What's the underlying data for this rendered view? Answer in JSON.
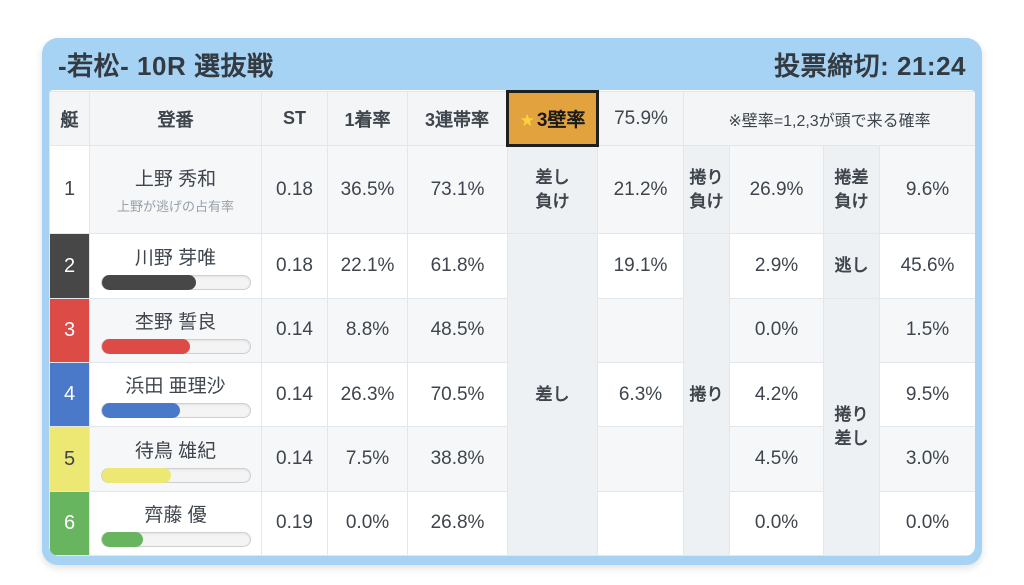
{
  "card": {
    "title": "-若松- 10R 選抜戦",
    "deadline": "投票締切: 21:24",
    "frame_color": "#a6d2f3"
  },
  "table": {
    "header": {
      "boat": "艇",
      "entry": "登番",
      "st": "ST",
      "win_rate": "1着率",
      "top3_rate": "3連帯率",
      "wall_star": "★",
      "wall_label": "3壁率",
      "wall_value": "75.9%",
      "wall_badge_bg": "#e2a33f",
      "note": "※壁率=1,2,3が頭で来る確率"
    },
    "merged_labels": {
      "sashi": "差し",
      "makuri": "捲り",
      "makuri_sashi": "捲り\n差し"
    },
    "rows": [
      {
        "boat": "1",
        "boat_bg": "#ffffff",
        "boat_fg": "#3f454d",
        "name": "上野 秀和",
        "subtext": "上野が逃げの占有率",
        "st": "0.18",
        "win_rate": "36.5%",
        "top3_rate": "73.1%",
        "label_a": "差し\n負け",
        "pct_a": "21.2%",
        "label_b": "捲り\n負け",
        "pct_b": "26.9%",
        "label_c": "捲差\n負け",
        "pct_c": "9.6%"
      },
      {
        "boat": "2",
        "boat_bg": "#474747",
        "boat_fg": "#ffffff",
        "name": "川野 芽唯",
        "bar_pct": 64,
        "st": "0.18",
        "win_rate": "22.1%",
        "top3_rate": "61.8%",
        "pct_a": "19.1%",
        "pct_b": "2.9%",
        "label_c": "逃し",
        "pct_c": "45.6%"
      },
      {
        "boat": "3",
        "boat_bg": "#dc4b45",
        "boat_fg": "#ffffff",
        "name": "杢野 誓良",
        "bar_pct": 60,
        "st": "0.14",
        "win_rate": "8.8%",
        "top3_rate": "48.5%",
        "pct_a": "",
        "pct_b": "0.0%",
        "pct_c": "1.5%"
      },
      {
        "boat": "4",
        "boat_bg": "#4a79ca",
        "boat_fg": "#ffffff",
        "name": "浜田 亜理沙",
        "bar_pct": 53,
        "st": "0.14",
        "win_rate": "26.3%",
        "top3_rate": "70.5%",
        "pct_a": "6.3%",
        "pct_b": "4.2%",
        "pct_c": "9.5%"
      },
      {
        "boat": "5",
        "boat_bg": "#ece873",
        "boat_fg": "#3f454d",
        "name": "待鳥 雄紀",
        "bar_pct": 47,
        "st": "0.14",
        "win_rate": "7.5%",
        "top3_rate": "38.8%",
        "pct_a": "",
        "pct_b": "4.5%",
        "pct_c": "3.0%"
      },
      {
        "boat": "6",
        "boat_bg": "#67b55f",
        "boat_fg": "#ffffff",
        "name": "齊藤 優",
        "bar_pct": 28,
        "st": "0.19",
        "win_rate": "0.0%",
        "top3_rate": "26.8%",
        "pct_a": "",
        "pct_b": "0.0%",
        "pct_c": "0.0%"
      }
    ]
  }
}
